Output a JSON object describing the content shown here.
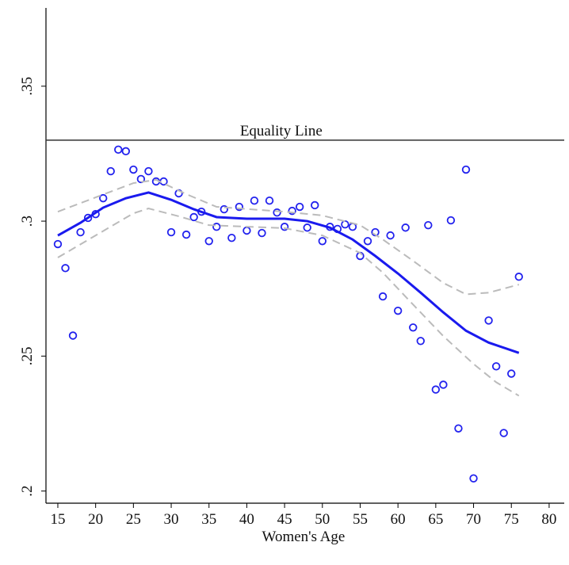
{
  "chart_data": {
    "type": "scatter",
    "xlabel": "Women's Age",
    "xlim": [
      13.43,
      82
    ],
    "ylim": [
      0.1955,
      0.379
    ],
    "xticks": [
      15,
      20,
      25,
      30,
      35,
      40,
      45,
      50,
      55,
      60,
      65,
      70,
      75,
      80
    ],
    "yticks": [
      {
        "value": 0.2,
        "label": ".2"
      },
      {
        "value": 0.25,
        "label": ".25"
      },
      {
        "value": 0.3,
        "label": ".3"
      },
      {
        "value": 0.35,
        "label": ".35"
      }
    ],
    "reference_line": {
      "text": "Equality Line",
      "y": 0.33,
      "color": "#333333"
    },
    "series": [
      {
        "style": "markers",
        "color": "#2222ee",
        "x": [
          15,
          16,
          17,
          18,
          19,
          20,
          21,
          22,
          23,
          24,
          25,
          26,
          27,
          28,
          29,
          30,
          31,
          32,
          33,
          34,
          35,
          36,
          37,
          38,
          39,
          40,
          41,
          42,
          43,
          44,
          45,
          46,
          47,
          48,
          49,
          50,
          51,
          52,
          53,
          54,
          55,
          56,
          57,
          58,
          59,
          60,
          61,
          62,
          63,
          64,
          65,
          66,
          67,
          68,
          69,
          70,
          72,
          73,
          74,
          75,
          76
        ],
        "values": [
          0.2915,
          0.2826,
          0.2576,
          0.2959,
          0.3012,
          0.3026,
          0.3085,
          0.3185,
          0.3265,
          0.3259,
          0.3191,
          0.3156,
          0.3185,
          0.3147,
          0.3147,
          0.2959,
          0.3103,
          0.295,
          0.3015,
          0.3035,
          0.2926,
          0.2979,
          0.3044,
          0.2938,
          0.3053,
          0.2965,
          0.3076,
          0.2956,
          0.3076,
          0.3032,
          0.2979,
          0.3038,
          0.3053,
          0.2976,
          0.3059,
          0.2926,
          0.2979,
          0.2971,
          0.2988,
          0.2979,
          0.2871,
          0.2926,
          0.2959,
          0.2721,
          0.2947,
          0.2668,
          0.2976,
          0.2606,
          0.2556,
          0.2985,
          0.2376,
          0.2394,
          0.3003,
          0.2232,
          0.3191,
          0.2047,
          0.2632,
          0.2462,
          0.2215,
          0.2435,
          0.2794
        ]
      },
      {
        "style": "dashed",
        "color": "#bbbbbb",
        "x": [
          15,
          20,
          25,
          28,
          32,
          36,
          45,
          50,
          55,
          58,
          62,
          66,
          69,
          72,
          76
        ],
        "values": [
          0.3035,
          0.3088,
          0.3141,
          0.3153,
          0.31,
          0.3053,
          0.3035,
          0.3021,
          0.2985,
          0.2932,
          0.2853,
          0.2771,
          0.2729,
          0.2735,
          0.2765
        ]
      },
      {
        "style": "dashed",
        "color": "#bbbbbb",
        "x": [
          15,
          20,
          25,
          27,
          31,
          35,
          45,
          50,
          55,
          58,
          62,
          66,
          70,
          73,
          76
        ],
        "values": [
          0.2865,
          0.2947,
          0.3029,
          0.3047,
          0.3018,
          0.2985,
          0.2974,
          0.2947,
          0.2882,
          0.2809,
          0.2691,
          0.2574,
          0.2471,
          0.2403,
          0.2353
        ]
      },
      {
        "style": "line",
        "color": "#1a1aee",
        "x": [
          15,
          18,
          21,
          24,
          27,
          30,
          33,
          36,
          40,
          45,
          48,
          51,
          54,
          57,
          60,
          63,
          66,
          69,
          72,
          76
        ],
        "values": [
          0.2947,
          0.2994,
          0.305,
          0.3085,
          0.3106,
          0.3079,
          0.3044,
          0.3015,
          0.3009,
          0.3009,
          0.3,
          0.2976,
          0.2932,
          0.2871,
          0.2806,
          0.2735,
          0.2662,
          0.2594,
          0.255,
          0.2512
        ]
      }
    ]
  }
}
